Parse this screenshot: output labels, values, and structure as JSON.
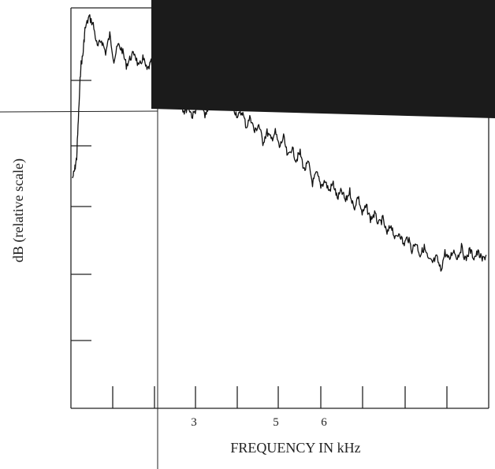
{
  "chart_data": {
    "type": "line",
    "title": "",
    "xlabel": "FREQUENCY IN kHz",
    "ylabel": "dB (relative scale)",
    "x_tick_labels": [
      "3",
      "5",
      "6"
    ],
    "xlim": [
      1,
      11
    ],
    "grid": false,
    "series": [
      {
        "values_note": "relative dB, y-axis unlabeled",
        "x": [
          1.0,
          1.05,
          1.1,
          1.15,
          1.2,
          1.25,
          1.3,
          1.4,
          1.5,
          1.6,
          1.7,
          1.8,
          1.9,
          2.0,
          2.1,
          2.2,
          2.3,
          2.4,
          2.5,
          2.6,
          2.7,
          2.8,
          2.9,
          3.0,
          3.1,
          3.2,
          3.3,
          3.4,
          3.5,
          3.6,
          3.7,
          3.8,
          3.9,
          4.0,
          4.1,
          4.2,
          4.3,
          4.4,
          4.5,
          4.6,
          4.7,
          4.8,
          4.9,
          5.0,
          5.1,
          5.2,
          5.3,
          5.4,
          5.5,
          5.6,
          5.7,
          5.8,
          5.9,
          6.0,
          6.1,
          6.2,
          6.3,
          6.4,
          6.5,
          6.6,
          6.7,
          6.8,
          6.9,
          7.0,
          7.1,
          7.2,
          7.3,
          7.4,
          7.5,
          7.6,
          7.7,
          7.8,
          7.9,
          8.0,
          8.1,
          8.2,
          8.3,
          8.4,
          8.5,
          8.6,
          8.7,
          8.8,
          8.9,
          9.0,
          9.1,
          9.2,
          9.3,
          9.4,
          9.5,
          9.6,
          9.7,
          9.8,
          9.9,
          10.0,
          10.1,
          10.2,
          10.3,
          10.4,
          10.5,
          10.6,
          10.7,
          10.8,
          10.9,
          11.0
        ],
        "y": [
          0.52,
          0.55,
          0.6,
          0.78,
          0.96,
          1.0,
          1.1,
          1.15,
          1.12,
          1.03,
          1.06,
          1.01,
          1.08,
          0.98,
          1.04,
          1.02,
          0.96,
          0.99,
          1.01,
          0.95,
          0.99,
          0.94,
          0.97,
          0.93,
          0.86,
          0.88,
          0.81,
          0.84,
          0.8,
          0.82,
          0.78,
          0.8,
          0.76,
          0.8,
          0.82,
          0.76,
          0.81,
          0.85,
          0.83,
          0.87,
          0.84,
          0.82,
          0.79,
          0.76,
          0.78,
          0.72,
          0.76,
          0.7,
          0.73,
          0.66,
          0.7,
          0.67,
          0.7,
          0.64,
          0.68,
          0.6,
          0.64,
          0.59,
          0.62,
          0.55,
          0.58,
          0.5,
          0.54,
          0.49,
          0.51,
          0.47,
          0.5,
          0.44,
          0.47,
          0.43,
          0.47,
          0.4,
          0.45,
          0.38,
          0.41,
          0.36,
          0.38,
          0.34,
          0.36,
          0.3,
          0.34,
          0.28,
          0.31,
          0.26,
          0.29,
          0.24,
          0.27,
          0.22,
          0.25,
          0.2,
          0.19,
          0.21,
          0.16,
          0.23,
          0.2,
          0.24,
          0.21,
          0.25,
          0.2,
          0.24,
          0.21,
          0.23,
          0.2,
          0.22
        ]
      }
    ]
  }
}
